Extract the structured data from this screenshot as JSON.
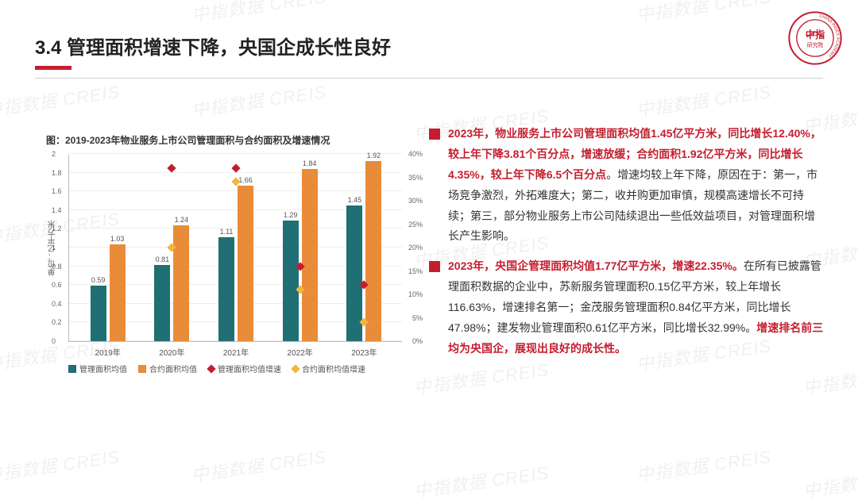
{
  "page_title": "3.4 管理面积增速下降，央国企成长性良好",
  "logo": {
    "outer_text_top": "CHINA INDEX ACADEMY",
    "center": "中指",
    "bottom": "研究院"
  },
  "watermark_text": "中指数据  CREIS",
  "chart": {
    "type": "bar+scatter",
    "title": "图：2019-2023年物业服务上市公司管理面积与合约面积及增速情况",
    "y_left_label": "单位：亿平方米",
    "y_left": {
      "min": 0,
      "max": 2.0,
      "step": 0.2
    },
    "y_right": {
      "min": 0,
      "max": 40,
      "step": 5,
      "suffix": "%"
    },
    "categories": [
      "2019年",
      "2020年",
      "2021年",
      "2022年",
      "2023年"
    ],
    "bars_manage": [
      0.59,
      0.81,
      1.11,
      1.29,
      1.45
    ],
    "bars_contract": [
      1.03,
      1.24,
      1.66,
      1.84,
      1.92
    ],
    "pts_manage_growth": [
      null,
      37,
      37,
      16,
      12
    ],
    "pts_contract_growth": [
      null,
      20,
      34,
      11,
      4
    ],
    "colors": {
      "manage_bar": "#1f6f74",
      "contract_bar": "#e88c3a",
      "manage_growth": "#c41e2e",
      "contract_growth": "#f2b63c",
      "grid": "#eeeeee",
      "axis": "#bbbbbb"
    },
    "legend": {
      "manage_bar": "管理面积均值",
      "contract_bar": "合约面积均值",
      "manage_growth": "管理面积均值增速",
      "contract_growth": "合约面积均值增速"
    }
  },
  "text": {
    "p1_lead": "2023年，物业服务上市公司管理面积均值1.45亿平方米，同比增长12.40%，较上年下降3.81个百分点，增速放缓；合约面积1.92亿平方米，同比增长4.35%，较上年下降6.5个百分点",
    "p1_tail": "。增速均较上年下降，原因在于：第一，市场竞争激烈，外拓难度大；第二，收并购更加审慎，规模高速增长不可持续；第三，部分物业服务上市公司陆续退出一些低效益项目，对管理面积增长产生影响。",
    "p2_lead": "2023年，央国企管理面积均值1.77亿平方米，增速22.35%。",
    "p2_mid": "在所有已披露管理面积数据的企业中，苏新服务管理面积0.15亿平方米，较上年增长116.63%，增速排名第一；金茂服务管理面积0.84亿平方米，同比增长47.98%；建发物业管理面积0.61亿平方米，同比增长32.99%。",
    "p2_tail": "增速排名前三均为央国企，展现出良好的成长性。"
  }
}
